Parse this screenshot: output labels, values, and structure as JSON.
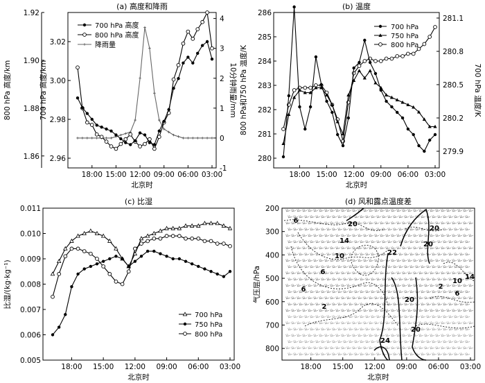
{
  "panels": {
    "a": {
      "title": "(a) 高度和降雨",
      "xlabel": "北京时",
      "y800_label": "800 hPa 高度/km",
      "y700_label": "700 hPa 高度/km",
      "yrain_label": "10分钟雨量/mm",
      "xticks": [
        "18:00",
        "15:00",
        "12:00",
        "09:00",
        "06:00",
        "03:00"
      ],
      "y800_ticks": [
        "1.86",
        "1.88",
        "1.90",
        "1.92"
      ],
      "y700_ticks": [
        "2.96",
        "2.98",
        "3.00",
        "3.02"
      ],
      "yrain_ticks": [
        "-1",
        "0",
        "1",
        "2",
        "3",
        "4"
      ],
      "legend": [
        "700 hPa 高度",
        "800 hPa 高度",
        "降雨量"
      ]
    },
    "b": {
      "title": "(b) 温度",
      "xlabel": "北京时",
      "yleft_label": "800 hPa和750 hPa 温度/K",
      "yright_label": "700 hPa 温度/K",
      "xticks": [
        "18:00",
        "15:00",
        "12:00",
        "09:00",
        "06:00",
        "03:00"
      ],
      "yleft_ticks": [
        "280",
        "281",
        "282",
        "283",
        "284",
        "285",
        "286"
      ],
      "yright_ticks": [
        "279.9",
        "280.2",
        "280.5",
        "280.8",
        "281.1"
      ],
      "legend": [
        "700 hPa",
        "750 hPa",
        "800 hPa"
      ]
    },
    "c": {
      "title": "(c) 比湿",
      "xlabel": "北京时",
      "ylabel": "比湿/(kg·kg⁻¹)",
      "xticks": [
        "18:00",
        "15:00",
        "12:00",
        "09:00",
        "06:00",
        "03:00"
      ],
      "yticks": [
        "0.005",
        "0.006",
        "0.007",
        "0.008",
        "0.009",
        "0.010",
        "0.011"
      ],
      "legend": [
        "700 hPa",
        "750 hPa",
        "800 hPa"
      ]
    },
    "d": {
      "title": "(d) 风和露点温度差",
      "xlabel": "北京时",
      "ylabel": "气压层/hPa",
      "xticks": [
        "18:00",
        "15:00",
        "12:00",
        "09:00",
        "06:00",
        "03:00"
      ],
      "yticks": [
        "200",
        "300",
        "400",
        "500",
        "600",
        "700",
        "800"
      ],
      "contour_labels": [
        "6",
        "14",
        "10",
        "20",
        "6",
        "20",
        "20",
        "22",
        "20",
        "10",
        "14",
        "2",
        "6",
        "6",
        "2",
        "24",
        "20"
      ]
    }
  },
  "chart_data": [
    {
      "type": "line",
      "panel": "a",
      "title": "(a) 高度和降雨",
      "xlabel": "北京时",
      "x_ticks": [
        "18:00",
        "15:00",
        "12:00",
        "09:00",
        "06:00",
        "03:00"
      ],
      "x_range": [
        0,
        5.6
      ],
      "series": [
        {
          "name": "700 hPa 高度",
          "axis": "y700_km",
          "marker": "filled-circle",
          "x": [
            0,
            0.2,
            0.4,
            0.6,
            0.8,
            1.0,
            1.2,
            1.4,
            1.6,
            1.8,
            2.0,
            2.2,
            2.4,
            2.6,
            2.8,
            3.0,
            3.2,
            3.4,
            3.6,
            3.8,
            4.0,
            4.2,
            4.4,
            4.6,
            4.8,
            5.0,
            5.2,
            5.4,
            5.6
          ],
          "values": [
            2.991,
            2.986,
            2.983,
            2.98,
            2.977,
            2.976,
            2.975,
            2.974,
            2.972,
            2.97,
            2.968,
            2.967,
            2.969,
            2.973,
            2.972,
            2.968,
            2.967,
            2.974,
            2.979,
            2.985,
            2.996,
            3.001,
            3.009,
            3.012,
            3.009,
            3.014,
            3.018,
            3.02,
            3.011
          ]
        },
        {
          "name": "800 hPa 高度",
          "axis": "y800_km",
          "marker": "open-circle",
          "x": [
            0,
            0.2,
            0.4,
            0.6,
            0.8,
            1.0,
            1.2,
            1.4,
            1.6,
            1.8,
            2.0,
            2.2,
            2.4,
            2.6,
            2.8,
            3.0,
            3.2,
            3.4,
            3.6,
            3.8,
            4.0,
            4.2,
            4.4,
            4.6,
            4.8,
            5.0,
            5.2,
            5.4,
            5.6
          ],
          "values": [
            1.897,
            1.88,
            1.874,
            1.873,
            1.869,
            1.868,
            1.866,
            1.864,
            1.863,
            1.865,
            1.867,
            1.869,
            1.866,
            1.864,
            1.865,
            1.867,
            1.863,
            1.868,
            1.874,
            1.878,
            1.892,
            1.898,
            1.907,
            1.912,
            1.909,
            1.913,
            1.916,
            1.92,
            1.905
          ]
        },
        {
          "name": "降雨量",
          "axis": "rain_mm",
          "marker": "small-cross",
          "x": [
            0,
            0.2,
            0.4,
            0.6,
            0.8,
            1.0,
            1.2,
            1.4,
            1.6,
            1.8,
            2.0,
            2.2,
            2.4,
            2.6,
            2.8,
            3.0,
            3.2,
            3.4,
            3.6,
            3.8,
            4.0,
            4.2,
            4.4,
            4.6,
            4.8,
            5.0,
            5.2,
            5.4,
            5.6
          ],
          "values": [
            0,
            0,
            0,
            0,
            0,
            0,
            0,
            0,
            0.05,
            0.1,
            0.15,
            0.2,
            0.6,
            2.0,
            3.7,
            3.0,
            1.5,
            0.6,
            0.3,
            0.2,
            0.1,
            0.05,
            0,
            0,
            0,
            0,
            0,
            0,
            0
          ]
        }
      ],
      "axes": {
        "y800_km": {
          "label": "800 hPa 高度/km",
          "range": [
            1.855,
            1.92
          ]
        },
        "y700_km": {
          "label": "700 hPa 高度/km",
          "range": [
            2.955,
            3.035
          ]
        },
        "rain_mm": {
          "label": "10分钟雨量/mm",
          "range": [
            -1,
            4.2
          ]
        }
      },
      "legend_position": "top-left"
    },
    {
      "type": "line",
      "panel": "b",
      "title": "(b) 温度",
      "xlabel": "北京时",
      "x_ticks": [
        "18:00",
        "15:00",
        "12:00",
        "09:00",
        "06:00",
        "03:00"
      ],
      "x_range": [
        0,
        5.6
      ],
      "series": [
        {
          "name": "700 hPa",
          "axis": "right_K",
          "marker": "filled-circle",
          "x": [
            0,
            0.2,
            0.4,
            0.6,
            0.8,
            1.0,
            1.2,
            1.4,
            1.6,
            1.8,
            2.0,
            2.2,
            2.4,
            2.6,
            2.8,
            3.0,
            3.2,
            3.4,
            3.6,
            3.8,
            4.0,
            4.2,
            4.4,
            4.6,
            4.8,
            5.0,
            5.2,
            5.4,
            5.6
          ],
          "values": [
            279.85,
            280.4,
            281.2,
            280.3,
            280.1,
            280.3,
            280.75,
            280.5,
            280.35,
            280.25,
            280.05,
            279.95,
            280.2,
            280.65,
            280.7,
            280.9,
            280.7,
            280.6,
            280.45,
            280.35,
            280.3,
            280.25,
            280.2,
            280.1,
            280.05,
            279.95,
            279.9,
            280.0,
            280.05
          ]
        },
        {
          "name": "750 hPa",
          "axis": "left_K",
          "marker": "filled-triangle",
          "x": [
            0,
            0.2,
            0.4,
            0.6,
            0.8,
            1.0,
            1.2,
            1.4,
            1.6,
            1.8,
            2.0,
            2.2,
            2.4,
            2.6,
            2.8,
            3.0,
            3.2,
            3.4,
            3.6,
            3.8,
            4.0,
            4.2,
            4.4,
            4.6,
            4.8,
            5.0,
            5.2,
            5.4,
            5.6
          ],
          "values": [
            280.6,
            281.8,
            282.5,
            282.8,
            282.7,
            282.7,
            282.9,
            282.9,
            282.6,
            282.2,
            281.5,
            281.0,
            282.6,
            283.2,
            283.6,
            283.3,
            283.6,
            283.1,
            282.9,
            282.6,
            282.5,
            282.4,
            282.3,
            282.2,
            282.1,
            281.9,
            281.6,
            281.3,
            281.3
          ]
        },
        {
          "name": "800 hPa",
          "axis": "left_K",
          "marker": "open-circle",
          "x": [
            0,
            0.2,
            0.4,
            0.6,
            0.8,
            1.0,
            1.2,
            1.4,
            1.6,
            1.8,
            2.0,
            2.2,
            2.4,
            2.6,
            2.8,
            3.0,
            3.2,
            3.4,
            3.6,
            3.8,
            4.0,
            4.2,
            4.4,
            4.6,
            4.8,
            5.0,
            5.2,
            5.4,
            5.6
          ],
          "values": [
            281.2,
            282.2,
            282.8,
            282.9,
            282.9,
            282.9,
            283.0,
            283.0,
            282.7,
            282.2,
            281.6,
            280.7,
            282.3,
            283.5,
            283.8,
            284.0,
            284.1,
            284.0,
            284.0,
            284.1,
            284.1,
            284.2,
            284.2,
            284.3,
            284.3,
            284.5,
            284.7,
            285.0,
            285.4
          ]
        }
      ],
      "axes": {
        "left_K": {
          "label": "800 hPa和750 hPa 温度/K",
          "range": [
            279.6,
            286
          ]
        },
        "right_K": {
          "label": "700 hPa 温度/K",
          "range": [
            279.75,
            281.15
          ]
        }
      },
      "legend_position": "top-right"
    },
    {
      "type": "line",
      "panel": "c",
      "title": "(c) 比湿",
      "xlabel": "北京时",
      "ylabel": "比湿/(kg·kg⁻¹)",
      "x_ticks": [
        "18:00",
        "15:00",
        "12:00",
        "09:00",
        "06:00",
        "03:00"
      ],
      "x_range": [
        0,
        5.6
      ],
      "ylim": [
        0.005,
        0.011
      ],
      "series": [
        {
          "name": "700 hPa",
          "marker": "open-triangle",
          "x": [
            0,
            0.2,
            0.4,
            0.6,
            0.8,
            1.0,
            1.2,
            1.4,
            1.6,
            1.8,
            2.0,
            2.2,
            2.4,
            2.6,
            2.8,
            3.0,
            3.2,
            3.4,
            3.6,
            3.8,
            4.0,
            4.2,
            4.4,
            4.6,
            4.8,
            5.0,
            5.2,
            5.4,
            5.6
          ],
          "values": [
            0.0084,
            0.0089,
            0.0094,
            0.0097,
            0.0099,
            0.01,
            0.0101,
            0.01,
            0.0099,
            0.0097,
            0.0094,
            0.009,
            0.0087,
            0.0092,
            0.0098,
            0.0099,
            0.01,
            0.0101,
            0.0102,
            0.0102,
            0.0102,
            0.0103,
            0.0103,
            0.0103,
            0.0104,
            0.0104,
            0.0104,
            0.0103,
            0.0102
          ]
        },
        {
          "name": "750 hPa",
          "marker": "filled-circle",
          "x": [
            0,
            0.2,
            0.4,
            0.6,
            0.8,
            1.0,
            1.2,
            1.4,
            1.6,
            1.8,
            2.0,
            2.2,
            2.4,
            2.6,
            2.8,
            3.0,
            3.2,
            3.4,
            3.6,
            3.8,
            4.0,
            4.2,
            4.4,
            4.6,
            4.8,
            5.0,
            5.2,
            5.4,
            5.6
          ],
          "values": [
            0.006,
            0.0063,
            0.0068,
            0.0079,
            0.0084,
            0.0086,
            0.0087,
            0.0088,
            0.0089,
            0.009,
            0.0091,
            0.009,
            0.0087,
            0.0089,
            0.0091,
            0.0093,
            0.0093,
            0.0092,
            0.0091,
            0.009,
            0.009,
            0.0089,
            0.0088,
            0.0087,
            0.0086,
            0.0085,
            0.0084,
            0.0083,
            0.0085
          ]
        },
        {
          "name": "800 hPa",
          "marker": "open-circle",
          "x": [
            0,
            0.2,
            0.4,
            0.6,
            0.8,
            1.0,
            1.2,
            1.4,
            1.6,
            1.8,
            2.0,
            2.2,
            2.4,
            2.6,
            2.8,
            3.0,
            3.2,
            3.4,
            3.6,
            3.8,
            4.0,
            4.2,
            4.4,
            4.6,
            4.8,
            5.0,
            5.2,
            5.4,
            5.6
          ],
          "values": [
            0.0075,
            0.0084,
            0.0091,
            0.0094,
            0.0094,
            0.0093,
            0.0092,
            0.009,
            0.0087,
            0.0084,
            0.0081,
            0.008,
            0.0085,
            0.0094,
            0.0096,
            0.0097,
            0.0098,
            0.0098,
            0.0099,
            0.0099,
            0.0099,
            0.0098,
            0.0098,
            0.0098,
            0.0097,
            0.0097,
            0.0096,
            0.0096,
            0.0095
          ]
        }
      ],
      "legend_position": "bottom-right"
    },
    {
      "type": "heatmap",
      "panel": "d",
      "title": "(d) 风和露点温度差",
      "xlabel": "北京时",
      "ylabel": "气压层/hPa",
      "x_ticks": [
        "18:00",
        "15:00",
        "12:00",
        "09:00",
        "06:00",
        "03:00"
      ],
      "y_ticks": [
        200,
        300,
        400,
        500,
        600,
        700,
        800
      ],
      "y_range": [
        200,
        850
      ],
      "contour_levels": [
        2,
        6,
        10,
        14,
        20,
        22,
        24
      ],
      "wind_barbs": "dense westerly barbs throughout the column"
    }
  ]
}
